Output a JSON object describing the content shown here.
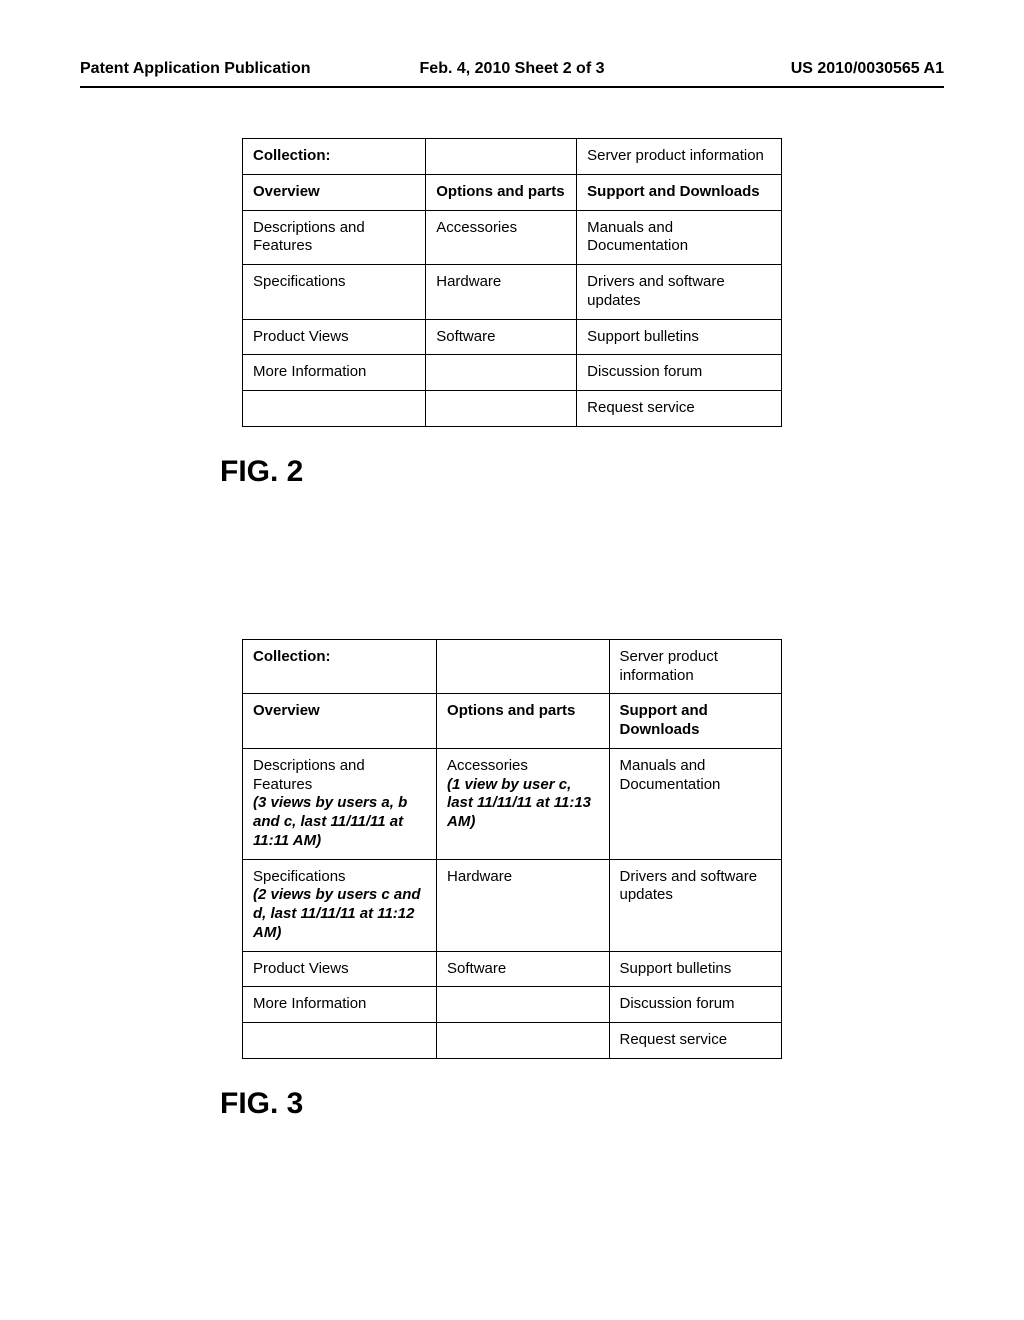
{
  "header": {
    "left": "Patent Application Publication",
    "center": "Feb. 4, 2010  Sheet 2 of 3",
    "right": "US 2010/0030565 A1"
  },
  "fig2": {
    "label": "FIG. 2",
    "rows": [
      [
        {
          "text": "Collection:",
          "bold": true
        },
        {
          "text": ""
        },
        {
          "text": "Server product information"
        }
      ],
      [
        {
          "text": "Overview",
          "bold": true
        },
        {
          "text": "Options and parts",
          "bold": true
        },
        {
          "text": "Support and Downloads",
          "bold": true
        }
      ],
      [
        {
          "text": "Descriptions and Features"
        },
        {
          "text": "Accessories"
        },
        {
          "text": "Manuals and Documentation"
        }
      ],
      [
        {
          "text": "Specifications"
        },
        {
          "text": "Hardware"
        },
        {
          "text": "Drivers and software updates"
        }
      ],
      [
        {
          "text": "Product Views"
        },
        {
          "text": "Software"
        },
        {
          "text": "Support bulletins"
        }
      ],
      [
        {
          "text": "More Information"
        },
        {
          "text": ""
        },
        {
          "text": "Discussion forum"
        }
      ],
      [
        {
          "text": ""
        },
        {
          "text": ""
        },
        {
          "text": "Request service"
        }
      ]
    ]
  },
  "fig3": {
    "label": "FIG. 3",
    "rows": [
      [
        {
          "text": "Collection:",
          "bold": true
        },
        {
          "text": ""
        },
        {
          "text": "Server product information"
        }
      ],
      [
        {
          "text": "Overview",
          "bold": true
        },
        {
          "text": "Options and parts",
          "bold": true
        },
        {
          "text": "Support and Downloads",
          "bold": true
        }
      ],
      [
        {
          "text": "Descriptions and Features",
          "annot": "(3 views by users a, b and c, last 11/11/11 at 11:11 AM)"
        },
        {
          "text": "Accessories",
          "annot": "(1 view by user c, last 11/11/11 at 11:13 AM)"
        },
        {
          "text": "Manuals and Documentation"
        }
      ],
      [
        {
          "text": "Specifications",
          "annot": "(2 views by users c and d, last 11/11/11 at 11:12 AM)"
        },
        {
          "text": "Hardware"
        },
        {
          "text": "Drivers and software updates"
        }
      ],
      [
        {
          "text": "Product Views"
        },
        {
          "text": "Software"
        },
        {
          "text": "Support bulletins"
        }
      ],
      [
        {
          "text": "More Information"
        },
        {
          "text": ""
        },
        {
          "text": "Discussion forum"
        }
      ],
      [
        {
          "text": ""
        },
        {
          "text": ""
        },
        {
          "text": "Request service"
        }
      ]
    ]
  }
}
